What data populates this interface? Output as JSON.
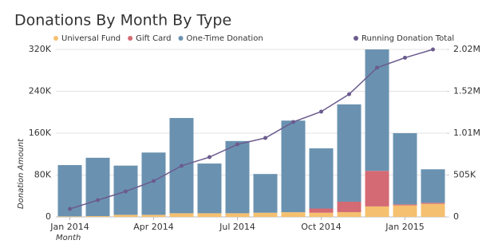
{
  "chart_data": {
    "type": "bar",
    "stacked": true,
    "title": "Donations By Month By Type",
    "y_label": "Donation Amount",
    "x_label": "Month",
    "categories": [
      "Jan 2014",
      null,
      null,
      "Apr 2014",
      null,
      null,
      "Jul 2014",
      null,
      null,
      "Oct 2014",
      null,
      null,
      "Jan 2015",
      null
    ],
    "series": [
      {
        "name": "Universal Fund",
        "color": "#f5c06f",
        "values": [
          1000,
          1500,
          4000,
          4000,
          7000,
          7000,
          7000,
          8000,
          9000,
          8000,
          9000,
          20000,
          22000,
          25000
        ]
      },
      {
        "name": "Gift Card",
        "color": "#d46a73",
        "values": [
          0,
          0,
          0,
          0,
          0,
          0,
          0,
          0,
          0,
          8000,
          20000,
          68000,
          2000,
          2000
        ]
      },
      {
        "name": "One-Time Donation",
        "color": "#6a92b0",
        "values": [
          98000,
          111500,
          94000,
          119000,
          182000,
          95000,
          138000,
          74000,
          175000,
          115000,
          186000,
          232000,
          136000,
          64000
        ]
      },
      {
        "name": "Running Donation Total",
        "color": "#6b5b8e",
        "type": "line",
        "axis": "y2",
        "values": [
          96000,
          202000,
          308000,
          433000,
          616000,
          721000,
          875000,
          952000,
          1145000,
          1270000,
          1480000,
          1800000,
          1920000,
          2020000
        ]
      }
    ],
    "ylim": [
      0,
      320000
    ],
    "yticks": [
      0,
      {
        "value": 80000,
        "label": "80K"
      },
      {
        "value": 160000,
        "label": "160K"
      },
      {
        "value": 240000,
        "label": "240K"
      },
      {
        "value": 320000,
        "label": "320K"
      }
    ],
    "y2lim": [
      0,
      2020000
    ],
    "y2ticks": [
      0,
      {
        "value": 505000,
        "label": "505K"
      },
      {
        "value": 1010000,
        "label": "1.01M"
      },
      {
        "value": 1515000,
        "label": "1.52M"
      },
      {
        "value": 2020000,
        "label": "2.02M"
      }
    ],
    "grid": true,
    "legend": "top"
  }
}
